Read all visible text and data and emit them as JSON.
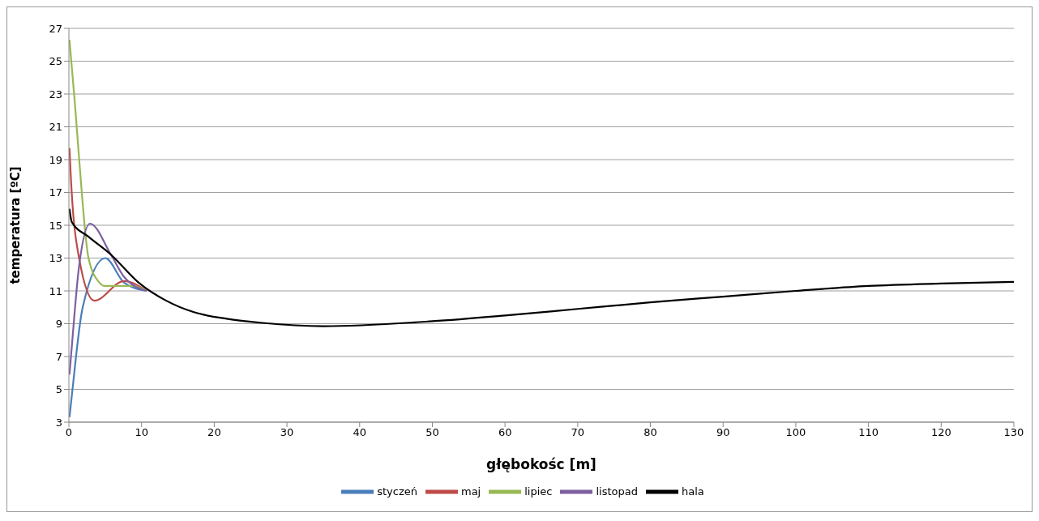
{
  "chart_data": {
    "type": "line",
    "xlabel": "głębokośc [m]",
    "ylabel": "temperatura [ºC]",
    "xlim": [
      0,
      130
    ],
    "xticks": [
      0,
      10,
      20,
      30,
      40,
      50,
      60,
      70,
      80,
      90,
      100,
      110,
      120,
      130
    ],
    "ylim": [
      3,
      27
    ],
    "yticks": [
      3,
      5,
      7,
      9,
      11,
      13,
      15,
      17,
      19,
      21,
      23,
      25,
      27
    ],
    "grid": "y",
    "legend": "bottom",
    "marker": "none",
    "line_style": "solid",
    "series": [
      {
        "name": "styczeń",
        "color": "#4a7ebb",
        "x": [
          0.08,
          0.4,
          1.9,
          5.0,
          7.6,
          10.7
        ],
        "values": [
          3.3,
          4.6,
          10.0,
          13.0,
          11.5,
          11.0
        ]
      },
      {
        "name": "maj",
        "color": "#be4b48",
        "x": [
          0.08,
          0.25,
          1.4,
          3.5,
          7.6,
          10.7
        ],
        "values": [
          19.7,
          18.1,
          13.0,
          10.4,
          11.6,
          11.0
        ]
      },
      {
        "name": "lipiec",
        "color": "#98b954",
        "x": [
          0.08,
          0.83,
          1.4,
          2.7,
          4.2,
          4.9,
          8.7,
          10.7
        ],
        "values": [
          26.3,
          22.4,
          19.1,
          13.0,
          11.5,
          11.3,
          11.3,
          11.0
        ]
      },
      {
        "name": "listopad",
        "color": "#7d60a0",
        "x": [
          0.08,
          0.4,
          1.4,
          2.9,
          5.8,
          7.6,
          10.7
        ],
        "values": [
          5.9,
          7.6,
          12.5,
          15.1,
          13.2,
          11.85,
          11.0
        ]
      },
      {
        "name": "hala",
        "color": "#000000",
        "x": [
          0.08,
          0.4,
          2.7,
          5.8,
          9.6,
          13.4,
          17.2,
          21.7,
          26.6,
          35,
          50,
          60,
          70,
          80,
          90,
          100,
          110,
          120,
          130
        ],
        "values": [
          16.0,
          15.2,
          14.3,
          13.2,
          11.5,
          10.4,
          9.7,
          9.3,
          9.05,
          8.85,
          9.15,
          9.5,
          9.9,
          10.3,
          10.65,
          11.0,
          11.3,
          11.45,
          11.55
        ]
      }
    ]
  }
}
